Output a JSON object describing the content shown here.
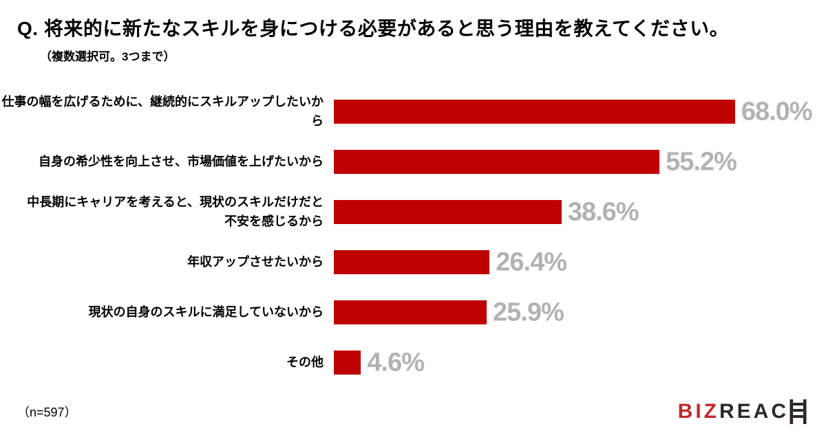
{
  "header": {
    "title": "Q. 将来的に新たなスキルを身につける必要があると思う理由を教えてください。",
    "subtitle": "（複数選択可。3つまで）"
  },
  "chart_data": {
    "type": "bar",
    "orientation": "horizontal",
    "title": "将来的に新たなスキルを身につける必要があると思う理由",
    "categories": [
      "仕事の幅を広げるために、継続的にスキルアップしたいから",
      "自身の希少性を向上させ、市場価値を上げたいから",
      "中長期にキャリアを考えると、現状のスキルだけだと不安を感じるから",
      "年収アップさせたいから",
      "現状の自身のスキルに満足していないから",
      "その他"
    ],
    "display_labels": [
      "仕事の幅を広げるために、継続的にスキルアップしたいから",
      "自身の希少性を向上させ、市場価値を上げたいから",
      "中長期にキャリアを考えると、現状のスキルだけだと\n不安を感じるから",
      "年収アップさせたいから",
      "現状の自身のスキルに満足していないから",
      "その他"
    ],
    "values": [
      68.0,
      55.2,
      38.6,
      26.4,
      25.9,
      4.6
    ],
    "value_labels": [
      "68.0%",
      "55.2%",
      "38.6%",
      "26.4%",
      "25.9%",
      "4.6%"
    ],
    "unit": "%",
    "xlim": [
      0,
      70
    ],
    "grid": false,
    "legend": false,
    "bar_color": "#be0000",
    "value_label_color": "#b2b2b2"
  },
  "footer": {
    "sample_size": "（n=597）",
    "logo": {
      "part1": "BIZ",
      "part2": "REAC",
      "ladder_icon": "ladder-h-icon",
      "part1_color": "#c2272d",
      "part2_color": "#2f2725"
    }
  }
}
